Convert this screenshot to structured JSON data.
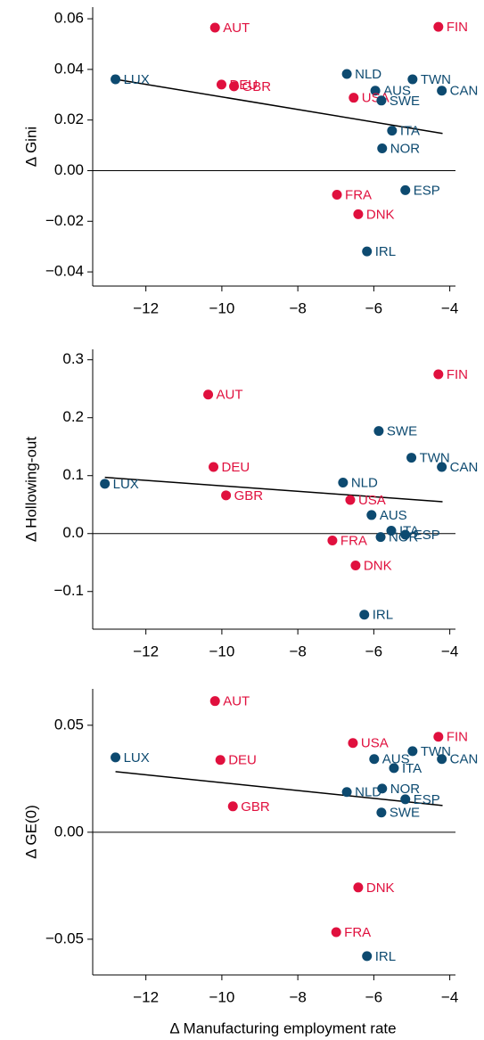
{
  "chart_data": [
    {
      "type": "scatter",
      "ylabel": "Δ Gini",
      "xlim": [
        -13.4,
        -3.85
      ],
      "ylim": [
        -0.0456,
        0.0646
      ],
      "xticks": [
        {
          "value": -12,
          "label": "−12"
        },
        {
          "value": -10,
          "label": "−10"
        },
        {
          "value": -8,
          "label": "−8"
        },
        {
          "value": -6,
          "label": "−6"
        },
        {
          "value": -4,
          "label": "−4"
        }
      ],
      "yticks": [
        {
          "value": 0.06,
          "label": "0.06"
        },
        {
          "value": 0.04,
          "label": "0.04"
        },
        {
          "value": 0.02,
          "label": "0.02"
        },
        {
          "value": 0,
          "label": "0.00"
        },
        {
          "value": -0.02,
          "label": "−0.02"
        },
        {
          "value": -0.04,
          "label": "−0.04"
        }
      ],
      "refline_y": 0,
      "labels": [
        "AUT",
        "FIN",
        "LUX",
        "DEU",
        "GBR",
        "NLD",
        "TWN",
        "AUS",
        "CAN",
        "USA",
        "SWE",
        "ITA",
        "NOR",
        "FRA",
        "ESP",
        "DNK",
        "IRL"
      ],
      "x": [
        -10.18,
        -4.3,
        -12.8,
        -10.01,
        -9.68,
        -6.71,
        -4.98,
        -5.96,
        -4.21,
        -6.53,
        -5.8,
        -5.52,
        -5.78,
        -6.97,
        -5.17,
        -6.41,
        -6.18
      ],
      "values": [
        0.0565,
        0.0568,
        0.0361,
        0.034,
        0.0333,
        0.0382,
        0.0361,
        0.0316,
        0.0316,
        0.0288,
        0.0277,
        0.0158,
        0.0088,
        -0.0095,
        -0.0077,
        -0.0172,
        -0.0319
      ],
      "point_colors": [
        "#e0103e",
        "#e0103e",
        "#0d4a70",
        "#e0103e",
        "#e0103e",
        "#0d4a70",
        "#0d4a70",
        "#0d4a70",
        "#0d4a70",
        "#e0103e",
        "#0d4a70",
        "#0d4a70",
        "#0d4a70",
        "#e0103e",
        "#0d4a70",
        "#e0103e",
        "#0d4a70"
      ],
      "fit": {
        "x": [
          -12.8,
          -4.19
        ],
        "values": [
          0.0361,
          0.0147
        ],
        "color": "#000000"
      }
    },
    {
      "type": "scatter",
      "ylabel": "Δ Hollowing-out",
      "xlim": [
        -13.4,
        -3.85
      ],
      "ylim": [
        -0.165,
        0.318
      ],
      "xticks": [
        {
          "value": -12,
          "label": "−12"
        },
        {
          "value": -10,
          "label": "−10"
        },
        {
          "value": -8,
          "label": "−8"
        },
        {
          "value": -6,
          "label": "−6"
        },
        {
          "value": -4,
          "label": "−4"
        }
      ],
      "yticks": [
        0.3,
        0.2,
        0.1,
        {
          "value": 0,
          "label": "0.0"
        },
        {
          "value": -0.1,
          "label": "−0.1"
        }
      ],
      "refline_y": 0,
      "labels": [
        "FIN",
        "AUT",
        "SWE",
        "TWN",
        "DEU",
        "CAN",
        "LUX",
        "NLD",
        "GBR",
        "USA",
        "AUS",
        "ITA",
        "ESP",
        "NOR",
        "FRA",
        "DNK",
        "IRL"
      ],
      "x": [
        -4.3,
        -10.36,
        -5.87,
        -5.01,
        -10.22,
        -4.21,
        -13.08,
        -6.81,
        -9.89,
        -6.62,
        -6.06,
        -5.54,
        -5.17,
        -5.82,
        -7.09,
        -6.48,
        -6.25
      ],
      "values": [
        0.275,
        0.24,
        0.177,
        0.131,
        0.115,
        0.115,
        0.086,
        0.088,
        0.066,
        0.058,
        0.032,
        0.005,
        -0.002,
        -0.006,
        -0.012,
        -0.055,
        -0.14
      ],
      "point_colors": [
        "#e0103e",
        "#e0103e",
        "#0d4a70",
        "#0d4a70",
        "#e0103e",
        "#0d4a70",
        "#0d4a70",
        "#0d4a70",
        "#e0103e",
        "#e0103e",
        "#0d4a70",
        "#0d4a70",
        "#0d4a70",
        "#0d4a70",
        "#e0103e",
        "#e0103e",
        "#0d4a70"
      ],
      "fit": {
        "x": [
          -13.08,
          -4.19
        ],
        "values": [
          0.097,
          0.055
        ],
        "color": "#000000"
      }
    },
    {
      "type": "scatter",
      "ylabel": "Δ GE(0)",
      "xlabel": "Δ Manufacturing employment rate",
      "xlim": [
        -13.4,
        -3.85
      ],
      "ylim": [
        -0.0667,
        0.067
      ],
      "xticks": [
        {
          "value": -12,
          "label": "−12"
        },
        {
          "value": -10,
          "label": "−10"
        },
        {
          "value": -8,
          "label": "−8"
        },
        {
          "value": -6,
          "label": "−6"
        },
        {
          "value": -4,
          "label": "−4"
        }
      ],
      "yticks": [
        0.05,
        {
          "value": 0,
          "label": "0.00"
        },
        {
          "value": -0.05,
          "label": "−0.05"
        }
      ],
      "refline_y": 0,
      "labels": [
        "AUT",
        "FIN",
        "USA",
        "TWN",
        "LUX",
        "AUS",
        "CAN",
        "DEU",
        "ITA",
        "NOR",
        "NLD",
        "ESP",
        "GBR",
        "SWE",
        "DNK",
        "FRA",
        "IRL"
      ],
      "x": [
        -10.18,
        -4.3,
        -6.55,
        -4.98,
        -12.8,
        -5.99,
        -4.21,
        -10.04,
        -5.47,
        -5.78,
        -6.71,
        -5.17,
        -9.71,
        -5.8,
        -6.41,
        -6.99,
        -6.18
      ],
      "values": [
        0.0613,
        0.0446,
        0.0417,
        0.0379,
        0.035,
        0.0342,
        0.0342,
        0.0338,
        0.03,
        0.0204,
        0.0188,
        0.0154,
        0.0121,
        0.0092,
        -0.0258,
        -0.0467,
        -0.0579
      ],
      "point_colors": [
        "#e0103e",
        "#e0103e",
        "#e0103e",
        "#0d4a70",
        "#0d4a70",
        "#0d4a70",
        "#0d4a70",
        "#e0103e",
        "#0d4a70",
        "#0d4a70",
        "#0d4a70",
        "#0d4a70",
        "#e0103e",
        "#0d4a70",
        "#e0103e",
        "#e0103e",
        "#0d4a70"
      ],
      "fit": {
        "x": [
          -12.8,
          -4.19
        ],
        "values": [
          0.0283,
          0.0125
        ],
        "color": "#000000"
      }
    }
  ]
}
